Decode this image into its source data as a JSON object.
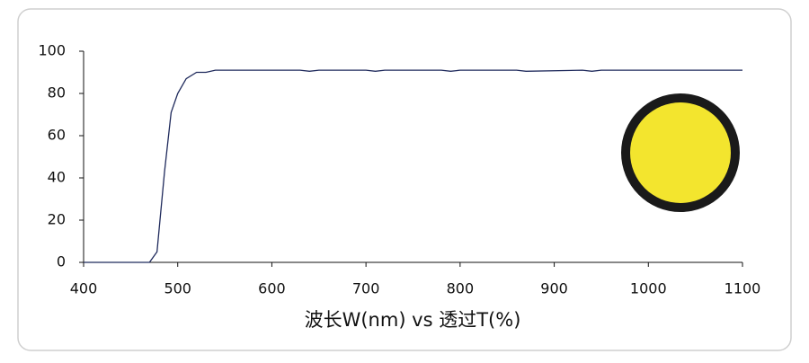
{
  "chart_data": {
    "type": "line",
    "x_label": "波长W(nm) vs 透过T(%)",
    "x": [
      400,
      470,
      478,
      486,
      493,
      500,
      509,
      520,
      530,
      540,
      560,
      630,
      640,
      650,
      700,
      710,
      720,
      780,
      790,
      800,
      860,
      870,
      930,
      940,
      950,
      960,
      1100
    ],
    "series": [
      {
        "color": "#1f2a5c",
        "values": [
          0,
          0,
          5,
          43,
          71,
          80,
          87,
          90,
          90,
          91,
          91,
          91,
          90.5,
          91,
          91,
          90.5,
          91,
          91,
          90.5,
          91,
          91,
          90.5,
          91,
          90.5,
          91,
          91,
          91
        ]
      }
    ],
    "xlim": [
      400,
      1100
    ],
    "xticks": [
      400,
      500,
      600,
      700,
      800,
      900,
      1000,
      1100
    ],
    "ylim": [
      0,
      100
    ],
    "yticks": [
      0,
      20,
      40,
      60,
      80,
      100
    ],
    "grid": false
  }
}
